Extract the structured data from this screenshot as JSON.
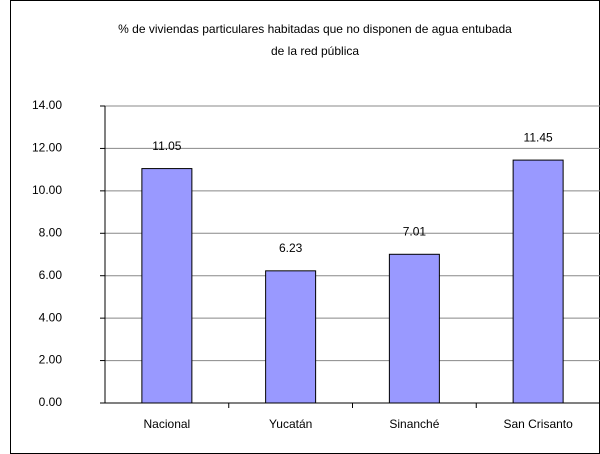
{
  "chart_data": {
    "type": "bar",
    "title": [
      "% de viviendas particulares habitadas que no disponen de agua entubada",
      "de la red pública"
    ],
    "categories": [
      "Nacional",
      "Yucatán",
      "Sinanché",
      "San Crisanto"
    ],
    "values": [
      11.05,
      6.23,
      7.01,
      11.45
    ],
    "color": "#9999ff",
    "ylim": [
      0,
      14
    ],
    "yticks": [
      {
        "value": 0,
        "label": "0.00"
      },
      {
        "value": 2,
        "label": "2.00"
      },
      {
        "value": 4,
        "label": "4.00"
      },
      {
        "value": 6,
        "label": "6.00"
      },
      {
        "value": 8,
        "label": "8.00"
      },
      {
        "value": 10,
        "label": "10.00"
      },
      {
        "value": 12,
        "label": "12.00"
      },
      {
        "value": 14,
        "label": "14.00"
      }
    ],
    "grid": true
  }
}
